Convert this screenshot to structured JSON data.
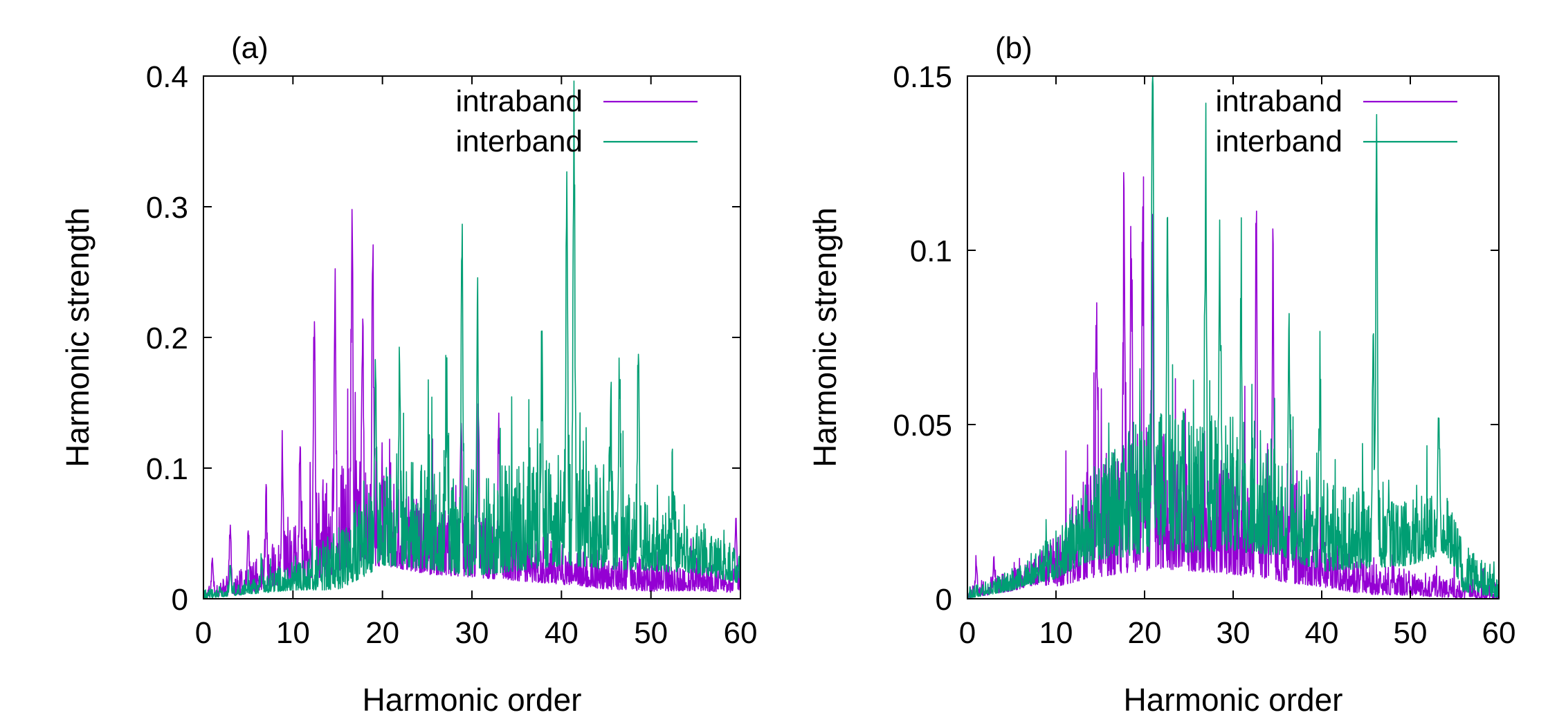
{
  "colors": {
    "intraband": "#9400D3",
    "interband": "#009E73",
    "axis": "#000000",
    "background": "#ffffff"
  },
  "chart_data": [
    {
      "type": "line",
      "panel_label": "(a)",
      "title": "",
      "xlabel": "Harmonic order",
      "ylabel": "Harmonic strength",
      "xlim": [
        0,
        60
      ],
      "ylim": [
        0,
        0.4
      ],
      "xticks": [
        0,
        10,
        20,
        30,
        40,
        50,
        60
      ],
      "xtick_labels": [
        "0",
        "10",
        "20",
        "30",
        "40",
        "50",
        "60"
      ],
      "yticks": [
        0,
        0.1,
        0.2,
        0.3,
        0.4
      ],
      "ytick_labels": [
        "0",
        "0.1",
        "0.2",
        "0.3",
        "0.4"
      ],
      "legend_position": "top-right",
      "series": [
        {
          "name": "intraband",
          "noise_seed": 11,
          "baseline": [
            [
              0,
              0.003
            ],
            [
              5,
              0.01
            ],
            [
              10,
              0.025
            ],
            [
              14,
              0.04
            ],
            [
              17,
              0.05
            ],
            [
              20,
              0.045
            ],
            [
              25,
              0.035
            ],
            [
              30,
              0.03
            ],
            [
              35,
              0.025
            ],
            [
              40,
              0.02
            ],
            [
              45,
              0.015
            ],
            [
              50,
              0.012
            ],
            [
              55,
              0.012
            ],
            [
              60,
              0.01
            ]
          ],
          "noise_scale": [
            [
              0,
              0.004
            ],
            [
              8,
              0.02
            ],
            [
              14,
              0.05
            ],
            [
              18,
              0.05
            ],
            [
              22,
              0.04
            ],
            [
              30,
              0.03
            ],
            [
              40,
              0.02
            ],
            [
              50,
              0.014
            ],
            [
              60,
              0.012
            ]
          ],
          "peaks": [
            [
              1,
              0.027
            ],
            [
              3,
              0.048
            ],
            [
              5,
              0.047
            ],
            [
              7,
              0.055
            ],
            [
              8.8,
              0.082
            ],
            [
              10.8,
              0.093
            ],
            [
              12.4,
              0.182
            ],
            [
              14.7,
              0.207
            ],
            [
              16.6,
              0.243
            ],
            [
              17.8,
              0.16
            ],
            [
              18.9,
              0.222
            ],
            [
              28.8,
              0.116
            ],
            [
              30.7,
              0.121
            ],
            [
              33,
              0.104
            ],
            [
              47.5,
              0.034
            ],
            [
              59.5,
              0.043
            ]
          ]
        },
        {
          "name": "interband",
          "noise_seed": 23,
          "baseline": [
            [
              0,
              0.002
            ],
            [
              10,
              0.012
            ],
            [
              15,
              0.02
            ],
            [
              18,
              0.035
            ],
            [
              20,
              0.045
            ],
            [
              25,
              0.045
            ],
            [
              30,
              0.04
            ],
            [
              35,
              0.045
            ],
            [
              40,
              0.05
            ],
            [
              45,
              0.045
            ],
            [
              50,
              0.035
            ],
            [
              55,
              0.03
            ],
            [
              60,
              0.02
            ]
          ],
          "noise_scale": [
            [
              0,
              0.004
            ],
            [
              10,
              0.012
            ],
            [
              18,
              0.04
            ],
            [
              25,
              0.05
            ],
            [
              30,
              0.05
            ],
            [
              40,
              0.055
            ],
            [
              45,
              0.05
            ],
            [
              50,
              0.03
            ],
            [
              60,
              0.018
            ]
          ],
          "peaks": [
            [
              3,
              0.018
            ],
            [
              6.5,
              0.02
            ],
            [
              19.2,
              0.113
            ],
            [
              21.9,
              0.121
            ],
            [
              27.2,
              0.104
            ],
            [
              28.9,
              0.237
            ],
            [
              30.6,
              0.161
            ],
            [
              37.8,
              0.11
            ],
            [
              40.6,
              0.28
            ],
            [
              41.4,
              0.31
            ],
            [
              45.5,
              0.086
            ],
            [
              46.5,
              0.131
            ],
            [
              48.6,
              0.164
            ],
            [
              52.5,
              0.05
            ]
          ]
        }
      ]
    },
    {
      "type": "line",
      "panel_label": "(b)",
      "title": "",
      "xlabel": "Harmonic order",
      "ylabel": "Harmonic strength",
      "xlim": [
        0,
        60
      ],
      "ylim": [
        0,
        0.15
      ],
      "xticks": [
        0,
        10,
        20,
        30,
        40,
        50,
        60
      ],
      "xtick_labels": [
        "0",
        "10",
        "20",
        "30",
        "40",
        "50",
        "60"
      ],
      "yticks": [
        0,
        0.05,
        0.1,
        0.15
      ],
      "ytick_labels": [
        "0",
        "0.05",
        "0.1",
        "0.15"
      ],
      "legend_position": "top-right",
      "series": [
        {
          "name": "intraband",
          "noise_seed": 37,
          "baseline": [
            [
              0,
              0.001
            ],
            [
              5,
              0.004
            ],
            [
              10,
              0.008
            ],
            [
              14,
              0.015
            ],
            [
              18,
              0.02
            ],
            [
              22,
              0.02
            ],
            [
              26,
              0.018
            ],
            [
              30,
              0.016
            ],
            [
              35,
              0.012
            ],
            [
              40,
              0.007
            ],
            [
              45,
              0.004
            ],
            [
              50,
              0.003
            ],
            [
              55,
              0.002
            ],
            [
              60,
              0.001
            ]
          ],
          "noise_scale": [
            [
              0,
              0.002
            ],
            [
              8,
              0.005
            ],
            [
              14,
              0.02
            ],
            [
              18,
              0.028
            ],
            [
              24,
              0.024
            ],
            [
              30,
              0.02
            ],
            [
              36,
              0.014
            ],
            [
              40,
              0.008
            ],
            [
              48,
              0.005
            ],
            [
              60,
              0.003
            ]
          ],
          "peaks": [
            [
              1,
              0.009
            ],
            [
              3,
              0.008
            ],
            [
              14.6,
              0.06
            ],
            [
              17.7,
              0.09
            ],
            [
              18.5,
              0.081
            ],
            [
              19.8,
              0.075
            ],
            [
              20.9,
              0.078
            ],
            [
              32.6,
              0.085
            ],
            [
              34.5,
              0.083
            ],
            [
              36.5,
              0.03
            ]
          ]
        },
        {
          "name": "interband",
          "noise_seed": 53,
          "baseline": [
            [
              0,
              0.001
            ],
            [
              5,
              0.004
            ],
            [
              10,
              0.01
            ],
            [
              14,
              0.018
            ],
            [
              18,
              0.022
            ],
            [
              22,
              0.025
            ],
            [
              26,
              0.025
            ],
            [
              30,
              0.025
            ],
            [
              35,
              0.022
            ],
            [
              40,
              0.015
            ],
            [
              45,
              0.015
            ],
            [
              50,
              0.015
            ],
            [
              54,
              0.018
            ],
            [
              56,
              0.006
            ],
            [
              60,
              0.002
            ]
          ],
          "noise_scale": [
            [
              0,
              0.002
            ],
            [
              6,
              0.004
            ],
            [
              12,
              0.012
            ],
            [
              18,
              0.022
            ],
            [
              25,
              0.026
            ],
            [
              32,
              0.024
            ],
            [
              40,
              0.016
            ],
            [
              50,
              0.012
            ],
            [
              55,
              0.01
            ],
            [
              60,
              0.004
            ]
          ],
          "peaks": [
            [
              20.9,
              0.136
            ],
            [
              22.6,
              0.071
            ],
            [
              26.9,
              0.093
            ],
            [
              28.5,
              0.071
            ],
            [
              30.9,
              0.059
            ],
            [
              36.3,
              0.055
            ],
            [
              39.8,
              0.045
            ],
            [
              45.8,
              0.057
            ],
            [
              46.2,
              0.115
            ],
            [
              53.2,
              0.034
            ]
          ]
        }
      ]
    }
  ]
}
